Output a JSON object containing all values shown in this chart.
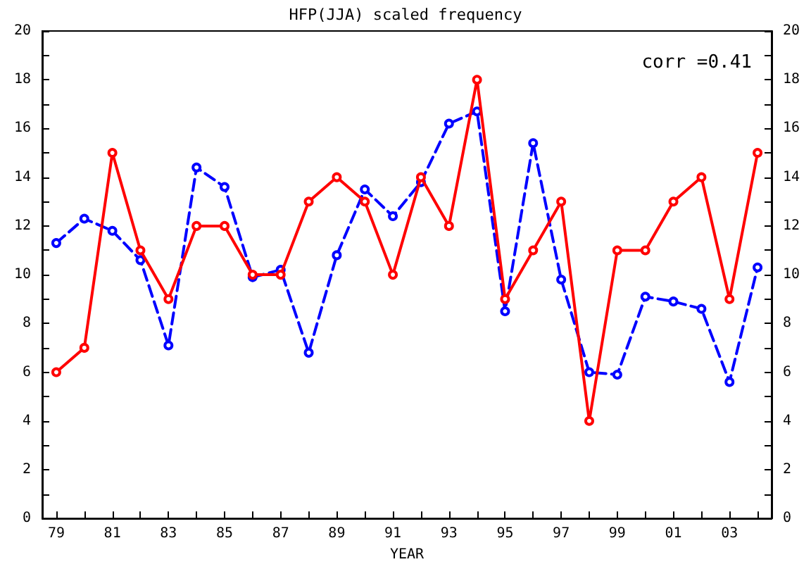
{
  "chart_data": {
    "type": "line",
    "title": "HFP(JJA) scaled frequency",
    "xlabel": "YEAR",
    "categories": [
      "79",
      null,
      "81",
      null,
      "83",
      null,
      "85",
      null,
      "87",
      null,
      "89",
      null,
      "91",
      null,
      "93",
      null,
      "95",
      null,
      "97",
      null,
      "99",
      null,
      "01",
      null,
      "03",
      null
    ],
    "series": [
      {
        "color": "#ff0000",
        "line_style": "solid",
        "values": [
          6,
          7,
          15,
          11,
          9,
          12,
          12,
          10,
          10,
          13,
          14,
          13,
          10,
          14,
          12,
          18,
          9,
          11,
          13,
          4,
          11,
          11,
          13,
          14,
          9,
          15
        ]
      },
      {
        "color": "#0000ff",
        "line_style": "dashed",
        "values": [
          11.3,
          12.3,
          11.8,
          10.6,
          7.1,
          14.4,
          13.6,
          9.9,
          10.2,
          6.8,
          10.8,
          13.5,
          12.4,
          13.8,
          16.2,
          16.7,
          8.5,
          15.4,
          9.8,
          6.0,
          5.9,
          9.1,
          8.9,
          8.6,
          5.6,
          10.3
        ]
      }
    ],
    "ylim": [
      0,
      20
    ],
    "yticks": [
      0,
      {
        "value": 1,
        "label": null
      },
      2,
      {
        "value": 3,
        "label": null
      },
      4,
      {
        "value": 5,
        "label": null
      },
      6,
      {
        "value": 7,
        "label": null
      },
      8,
      {
        "value": 9,
        "label": null
      },
      10,
      {
        "value": 11,
        "label": null
      },
      12,
      {
        "value": 13,
        "label": null
      },
      14,
      {
        "value": 15,
        "label": null
      },
      16,
      {
        "value": 17,
        "label": null
      },
      18,
      {
        "value": 19,
        "label": null
      },
      20
    ],
    "y2lim": [
      0,
      20
    ],
    "y2ticks": [
      0,
      {
        "value": 1,
        "label": null
      },
      2,
      {
        "value": 3,
        "label": null
      },
      4,
      {
        "value": 5,
        "label": null
      },
      6,
      {
        "value": 7,
        "label": null
      },
      8,
      {
        "value": 9,
        "label": null
      },
      10,
      {
        "value": 11,
        "label": null
      },
      12,
      {
        "value": 13,
        "label": null
      },
      14,
      {
        "value": 15,
        "label": null
      },
      16,
      {
        "value": 17,
        "label": null
      },
      18,
      {
        "value": 19,
        "label": null
      },
      20
    ],
    "annotations": [
      "corr =0.41"
    ],
    "marker": "circle",
    "grid": false
  }
}
